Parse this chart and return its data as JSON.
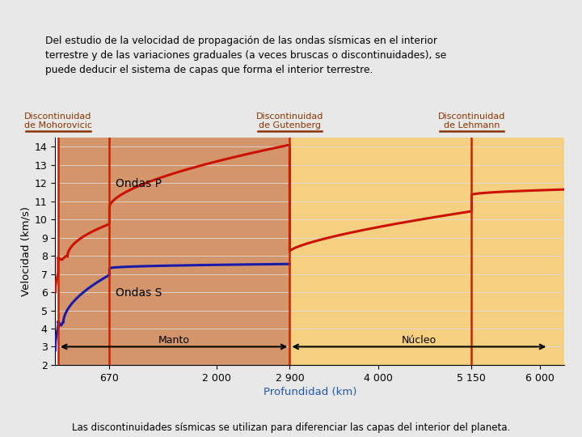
{
  "title_box": "Del estudio de la velocidad de propagación de las ondas sísmicas en el interior\nterrestre y de las variaciones graduales (a veces bruscas o discontinuidades), se\npuede deducir el sistema de capas que forma el interior terrestre.",
  "xlabel": "Profundidad (km)",
  "ylabel": "Velocidad (km/s)",
  "footer": "Las discontinuidades sísmicas se utilizan para diferenciar las capas del interior del planeta.",
  "ylim": [
    2,
    14.5
  ],
  "xlim": [
    0,
    6300
  ],
  "bg_color": "#e8e8e8",
  "title_bg": "#d0d0d0",
  "title_border": "#999999",
  "manto_color": "#d4956a",
  "nucleo_color": "#f5d080",
  "disc_line_color": "#cc2200",
  "disc_label_color": "#8b3300",
  "disc_underline_color": "#8b3300",
  "xtick_labels": [
    "670",
    "2 000",
    "2 900",
    "4 000",
    "5 150",
    "6 000"
  ],
  "xtick_vals": [
    670,
    2000,
    2900,
    4000,
    5150,
    6000
  ],
  "ytick_vals": [
    2,
    3,
    4,
    5,
    6,
    7,
    8,
    9,
    10,
    11,
    12,
    13,
    14
  ],
  "ondas_p_color": "#cc1100",
  "ondas_s_color": "#1a1aaa",
  "ondas_p_label": "Ondas P",
  "ondas_s_label": "Ondas S",
  "manto_label": "Manto",
  "nucleo_label": "Núcleo",
  "disc_moho_x": 35,
  "disc_670_x": 670,
  "disc_gutenberg_x": 2900,
  "disc_lehmann_x": 5150,
  "disc_labels": [
    {
      "x": 35,
      "text": "Discontinuidad\nde Mohorovicic"
    },
    {
      "x": 2900,
      "text": "Discontinuidad\nde Gutenberg"
    },
    {
      "x": 5150,
      "text": "Discontinuidad\nde Lehmann"
    }
  ]
}
